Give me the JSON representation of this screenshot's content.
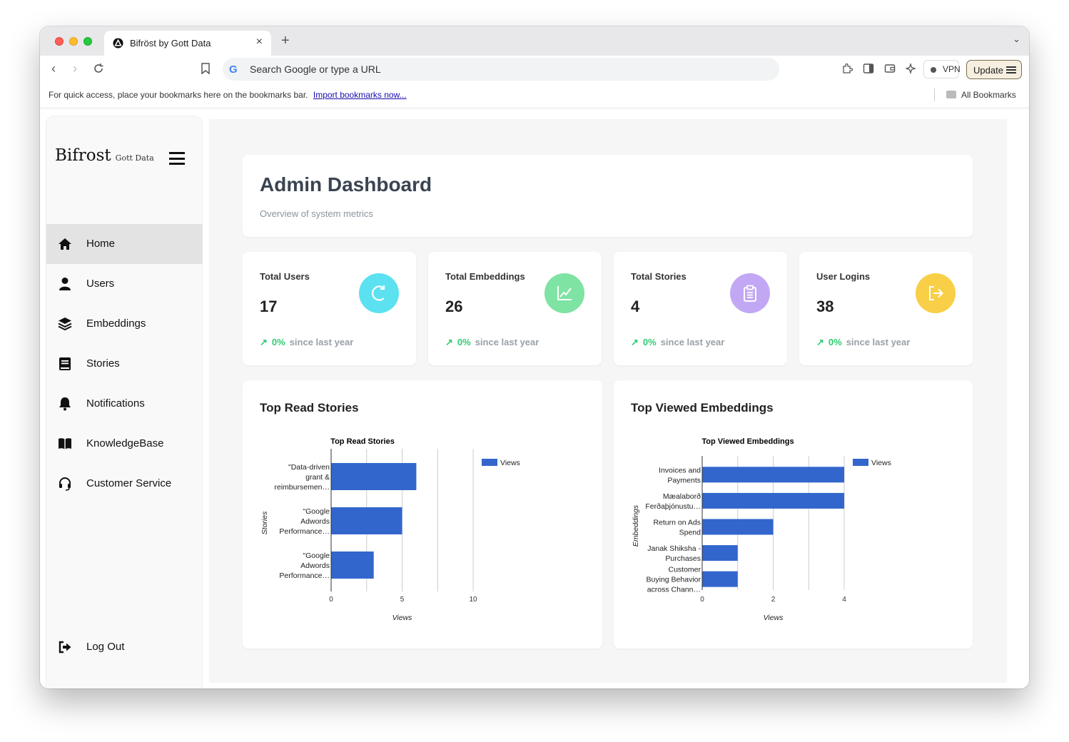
{
  "browser": {
    "tab_title": "Bifröst by Gott Data",
    "omnibox_text": "Search Google or type a URL",
    "vpn_label": "VPN",
    "update_label": "Update",
    "bookmarks_hint": "For quick access, place your bookmarks here on the bookmarks bar.",
    "bookmarks_import": "Import bookmarks now...",
    "all_bookmarks": "All Bookmarks"
  },
  "sidebar": {
    "brand": "Bifrost",
    "brand_sub": "Gott Data",
    "items": [
      {
        "label": "Home",
        "icon": "home-icon",
        "active": true
      },
      {
        "label": "Users",
        "icon": "user-icon",
        "active": false
      },
      {
        "label": "Embeddings",
        "icon": "layers-icon",
        "active": false
      },
      {
        "label": "Stories",
        "icon": "book-icon",
        "active": false
      },
      {
        "label": "Notifications",
        "icon": "bell-icon",
        "active": false
      },
      {
        "label": "KnowledgeBase",
        "icon": "open-book-icon",
        "active": false
      },
      {
        "label": "Customer Service",
        "icon": "headset-icon",
        "active": false
      }
    ],
    "logout": "Log Out"
  },
  "header": {
    "title": "Admin Dashboard",
    "subtitle": "Overview of system metrics"
  },
  "stats": [
    {
      "label": "Total Users",
      "value": "17",
      "arrow": "↗",
      "change": "0%",
      "since": "since last year",
      "icon": "refresh-icon",
      "color": "#5ce1f0"
    },
    {
      "label": "Total Embeddings",
      "value": "26",
      "arrow": "↗",
      "change": "0%",
      "since": "since last year",
      "icon": "trend-chart-icon",
      "color": "#7ee3a3"
    },
    {
      "label": "Total Stories",
      "value": "4",
      "arrow": "↗",
      "change": "0%",
      "since": "since last year",
      "icon": "clipboard-icon",
      "color": "#c2a8f4"
    },
    {
      "label": "User Logins",
      "value": "38",
      "arrow": "↗",
      "change": "0%",
      "since": "since last year",
      "icon": "logout-arrow-icon",
      "color": "#f9cf48"
    }
  ],
  "charts": {
    "stories_heading": "Top Read Stories",
    "embeddings_heading": "Top Viewed Embeddings"
  },
  "chart_data": [
    {
      "type": "bar",
      "orientation": "horizontal",
      "title": "Top Read Stories",
      "xlabel": "Views",
      "ylabel": "Stories",
      "categories": [
        [
          "\"Data-driven",
          "grant &",
          "reimbursemen…"
        ],
        [
          "\"Google",
          "Adwords",
          "Performance…"
        ],
        [
          "\"Google",
          "Adwords",
          "Performance…"
        ]
      ],
      "series": [
        {
          "name": "Views",
          "values": [
            6,
            5,
            3
          ]
        }
      ],
      "xlim": [
        0,
        10
      ],
      "xticks": [
        "0",
        "5",
        "10"
      ],
      "legend": "top-right",
      "color": "#3366cc",
      "grid": true
    },
    {
      "type": "bar",
      "orientation": "horizontal",
      "title": "Top Viewed Embeddings",
      "xlabel": "Views",
      "ylabel": "Embeddings",
      "categories": [
        [
          "Invoices and",
          "Payments"
        ],
        [
          "Mæalaborð",
          "Ferðaþjónustu…"
        ],
        [
          "Return on Ads",
          "Spend"
        ],
        [
          "Janak Shiksha -",
          "Purchases"
        ],
        [
          "Customer",
          "Buying Behavior",
          "across Chann…"
        ]
      ],
      "series": [
        {
          "name": "Views",
          "values": [
            4,
            4,
            2,
            1,
            1
          ]
        }
      ],
      "xlim": [
        0,
        4
      ],
      "xticks": [
        "0",
        "2",
        "4"
      ],
      "legend": "top-right",
      "color": "#3366cc",
      "grid": true
    }
  ]
}
